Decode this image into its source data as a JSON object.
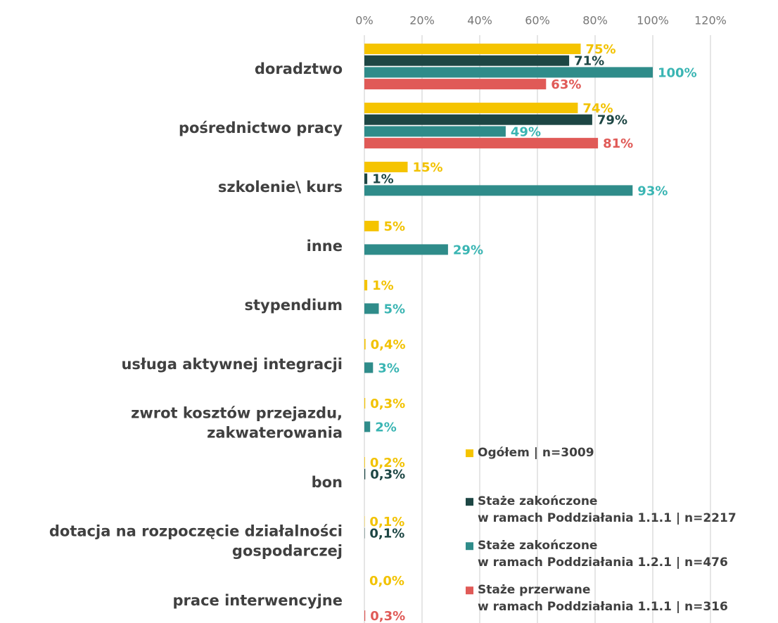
{
  "chart_data": {
    "type": "hbar",
    "categories": [
      "doradztwo",
      "pośrednictwo pracy",
      "szkolenie\\ kurs",
      "inne",
      "stypendium",
      "usługa aktywnej integracji",
      "zwrot kosztów przejazdu,\nzakwaterowania",
      "bon",
      "dotacja na rozpoczęcie działalności\ngospodarczej",
      "prace interwencyjne"
    ],
    "series": [
      {
        "name": "Ogółem | n=3009",
        "color": "#f5c400",
        "label_color": "#f2c200",
        "values": [
          75,
          74,
          15,
          5,
          1,
          0.4,
          0.3,
          0.2,
          0.1,
          0.0
        ],
        "value_labels": [
          "75%",
          "74%",
          "15%",
          "5%",
          "1%",
          "0,4%",
          "0,3%",
          "0,2%",
          "0,1%",
          "0,0%"
        ]
      },
      {
        "name": "Staże zakończone\nw ramach Poddziałania 1.1.1 | n=2217",
        "color": "#1d4644",
        "label_color": "#1d4644",
        "values": [
          71,
          79,
          1,
          null,
          null,
          null,
          null,
          0.3,
          0.1,
          null
        ],
        "value_labels": [
          "71%",
          "79%",
          "1%",
          null,
          null,
          null,
          null,
          "0,3%",
          "0,1%",
          null
        ]
      },
      {
        "name": "Staże zakończone\nw ramach Poddziałania 1.2.1 | n=476",
        "color": "#2f8c8a",
        "label_color": "#3ab5b3",
        "values": [
          100,
          49,
          93,
          29,
          5,
          3,
          2,
          null,
          null,
          null
        ],
        "value_labels": [
          "100%",
          "49%",
          "93%",
          "29%",
          "5%",
          "3%",
          "2%",
          null,
          null,
          null
        ]
      },
      {
        "name": "Staże przerwane\nw ramach Poddziałania 1.1.1 | n=316",
        "color": "#e05a57",
        "label_color": "#e05a57",
        "values": [
          63,
          81,
          null,
          null,
          null,
          null,
          null,
          null,
          null,
          0.3
        ],
        "value_labels": [
          "63%",
          "81%",
          null,
          null,
          null,
          null,
          null,
          null,
          null,
          "0,3%"
        ]
      }
    ],
    "xlim": [
      0,
      120
    ],
    "xticks": [
      {
        "value": 0,
        "label": "0%"
      },
      {
        "value": 20,
        "label": "20%"
      },
      {
        "value": 40,
        "label": "40%"
      },
      {
        "value": 60,
        "label": "60%"
      },
      {
        "value": 80,
        "label": "80%"
      },
      {
        "value": 100,
        "label": "100%"
      },
      {
        "value": 120,
        "label": "120%"
      }
    ],
    "grid": true,
    "legend": "lower right"
  }
}
